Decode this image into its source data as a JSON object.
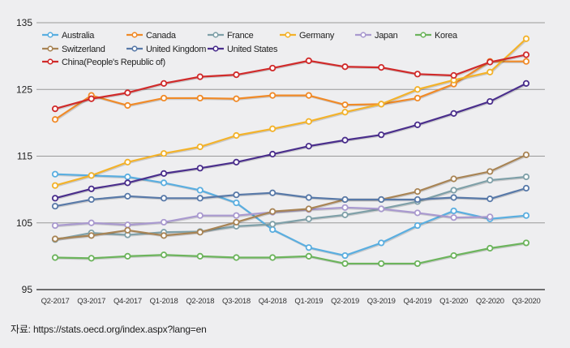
{
  "chart_data": {
    "type": "line",
    "title": "",
    "xlabel": "",
    "ylabel": "",
    "ylim": [
      95,
      135
    ],
    "yticks": [
      "135",
      "125",
      "115",
      "105",
      "95"
    ],
    "ytick_values": [
      135,
      125,
      115,
      105,
      95
    ],
    "grid": true,
    "legend_position": "top-left",
    "categories": [
      "Q2-2017",
      "Q3-2017",
      "Q4-2017",
      "Q1-2018",
      "Q2-2018",
      "Q3-2018",
      "Q4-2018",
      "Q1-2019",
      "Q2-2019",
      "Q3-2019",
      "Q4-2019",
      "Q1-2020",
      "Q2-2020",
      "Q3-2020"
    ],
    "series": [
      {
        "name": "Australia",
        "color": "#5aaee0",
        "values": [
          112.3,
          112.1,
          111.9,
          111.0,
          109.9,
          108.0,
          104.0,
          101.3,
          100.1,
          102.0,
          104.6,
          106.8,
          105.6,
          106.1
        ]
      },
      {
        "name": "Canada",
        "color": "#f08a28",
        "values": [
          120.5,
          124.1,
          122.6,
          123.7,
          123.7,
          123.6,
          124.1,
          124.1,
          122.7,
          122.8,
          123.7,
          125.8,
          129.2,
          129.2
        ]
      },
      {
        "name": "France",
        "color": "#7fa0a8",
        "values": [
          102.5,
          103.5,
          103.2,
          103.6,
          103.7,
          104.5,
          104.8,
          105.6,
          106.2,
          107.1,
          108.2,
          109.9,
          111.4,
          111.9
        ]
      },
      {
        "name": "Germany",
        "color": "#f3b22a",
        "values": [
          110.6,
          112.1,
          114.1,
          115.4,
          116.4,
          118.1,
          119.1,
          120.2,
          121.6,
          122.8,
          125.0,
          126.4,
          127.6,
          132.6
        ]
      },
      {
        "name": "Japan",
        "color": "#a999cf",
        "values": [
          104.6,
          105.0,
          104.7,
          105.1,
          106.1,
          106.1,
          106.6,
          107.0,
          107.3,
          107.1,
          106.5,
          105.8,
          105.9,
          null
        ]
      },
      {
        "name": "Korea",
        "color": "#6cb45c",
        "values": [
          99.8,
          99.7,
          100.0,
          100.2,
          100.0,
          99.8,
          99.8,
          100.0,
          98.9,
          98.9,
          98.9,
          100.1,
          101.2,
          102.0
        ]
      },
      {
        "name": "Switzerland",
        "color": "#a88455",
        "values": [
          102.6,
          103.1,
          103.9,
          103.1,
          103.6,
          105.1,
          106.7,
          107.1,
          108.5,
          108.5,
          109.7,
          111.6,
          112.7,
          115.2
        ]
      },
      {
        "name": "United Kingdom",
        "color": "#5879a8",
        "values": [
          107.5,
          108.5,
          109.0,
          108.7,
          108.7,
          109.2,
          109.5,
          108.8,
          108.5,
          108.5,
          108.5,
          108.8,
          108.6,
          110.2
        ]
      },
      {
        "name": "United States",
        "color": "#4a2e8c",
        "values": [
          108.7,
          110.1,
          111.0,
          112.4,
          113.2,
          114.1,
          115.3,
          116.5,
          117.4,
          118.2,
          119.7,
          121.4,
          123.2,
          125.9
        ]
      },
      {
        "name": "China(People's Republic of)",
        "color": "#d02a2a",
        "values": [
          122.1,
          123.6,
          124.5,
          125.9,
          126.9,
          127.2,
          128.2,
          129.3,
          128.4,
          128.3,
          127.3,
          127.1,
          129.1,
          130.2
        ]
      }
    ]
  },
  "source_text": "자료: https://stats.oecd.org/index.aspx?lang=en"
}
